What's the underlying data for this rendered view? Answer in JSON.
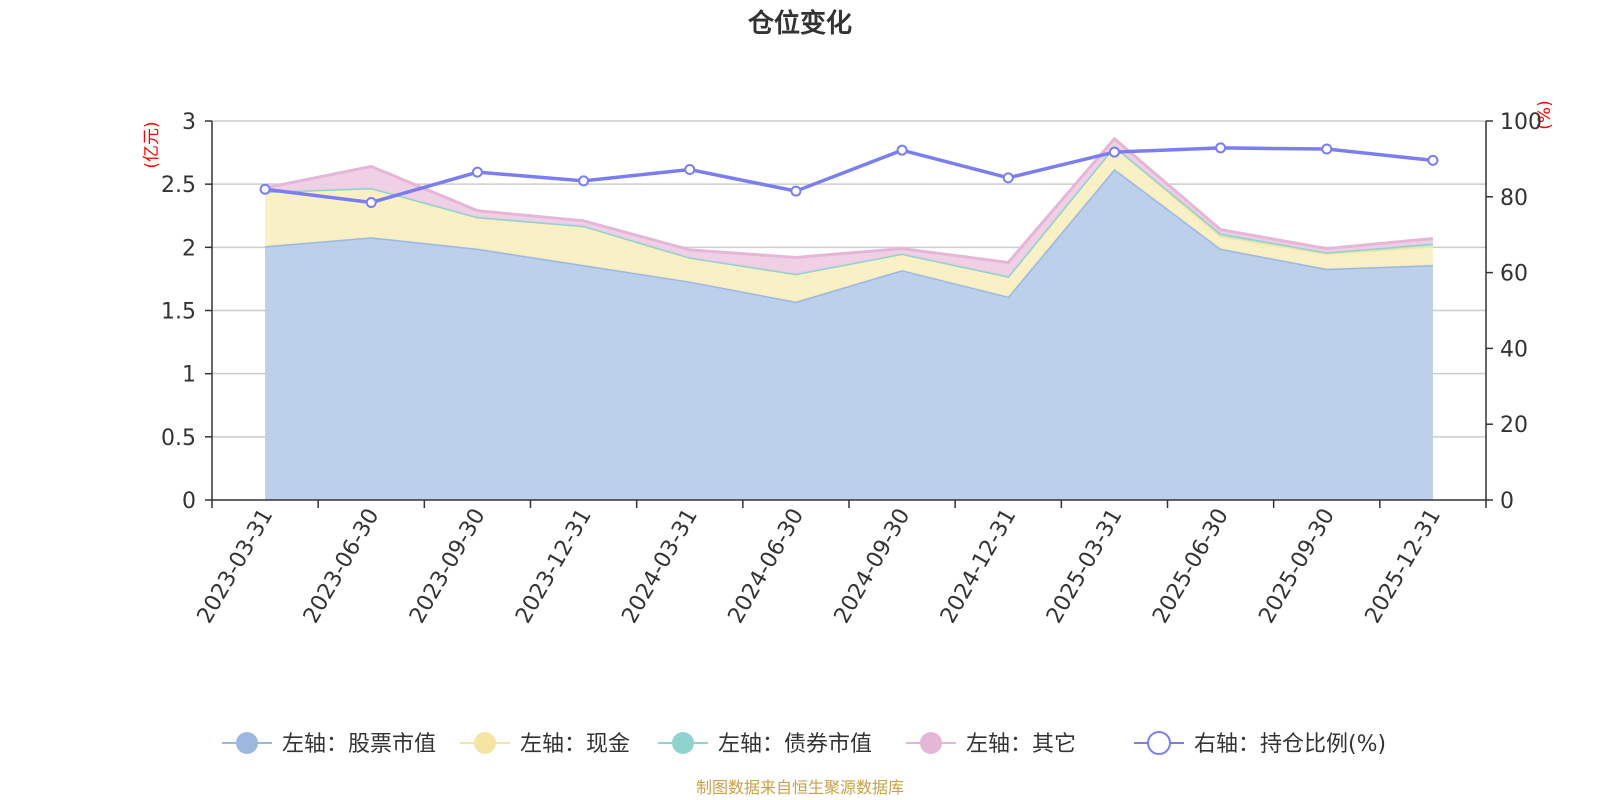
{
  "chart_data": {
    "type": "area",
    "title": "仓位变化",
    "categories": [
      "2023-03-31",
      "2023-06-30",
      "2023-09-30",
      "2023-12-31",
      "2024-03-31",
      "2024-06-30",
      "2024-09-30",
      "2024-12-31",
      "2025-03-31",
      "2025-06-30",
      "2025-09-30",
      "2025-12-31"
    ],
    "left_axis": {
      "unit_label": "(亿元)",
      "ylim": [
        0,
        3
      ],
      "ticks": [
        "0",
        "0.5",
        "1",
        "1.5",
        "2",
        "2.5",
        "3"
      ]
    },
    "right_axis": {
      "unit_label": "(%)",
      "ylim": [
        0,
        100
      ],
      "ticks": [
        "0",
        "20",
        "40",
        "60",
        "80",
        "100"
      ]
    },
    "stacked": true,
    "series": [
      {
        "name": "左轴：股票市值",
        "axis": "left",
        "color": "#9db8e0",
        "fill": "#b8cdea",
        "values": [
          2.01,
          2.08,
          1.99,
          1.86,
          1.73,
          1.57,
          1.82,
          1.61,
          2.62,
          1.99,
          1.83,
          1.86
        ]
      },
      {
        "name": "左轴：现金",
        "axis": "left",
        "color": "#f6e4a4",
        "fill": "#faefc3",
        "values": [
          0.43,
          0.39,
          0.25,
          0.31,
          0.19,
          0.22,
          0.13,
          0.16,
          0.18,
          0.1,
          0.12,
          0.15
        ]
      },
      {
        "name": "左轴：债券市值",
        "axis": "left",
        "color": "#8fd3cf",
        "fill": "#b7e3e0",
        "values": [
          0,
          0,
          0,
          0,
          0,
          0,
          0,
          0,
          0,
          0.02,
          0.01,
          0.02
        ]
      },
      {
        "name": "左轴：其它",
        "axis": "left",
        "color": "#e6b6d8",
        "fill": "#efcde4",
        "values": [
          0.03,
          0.17,
          0.05,
          0.04,
          0.06,
          0.13,
          0.04,
          0.11,
          0.06,
          0.03,
          0.03,
          0.04
        ]
      },
      {
        "name": "右轴：持仓比例(%)",
        "axis": "right",
        "color": "#7b7ef0",
        "values": [
          82,
          78.5,
          86.5,
          84.2,
          87.2,
          81.5,
          92.3,
          85,
          91.8,
          92.9,
          92.6,
          89.6
        ]
      }
    ],
    "legend_position": "bottom",
    "grid": true,
    "source_note": "制图数据来自恒生聚源数据库"
  }
}
